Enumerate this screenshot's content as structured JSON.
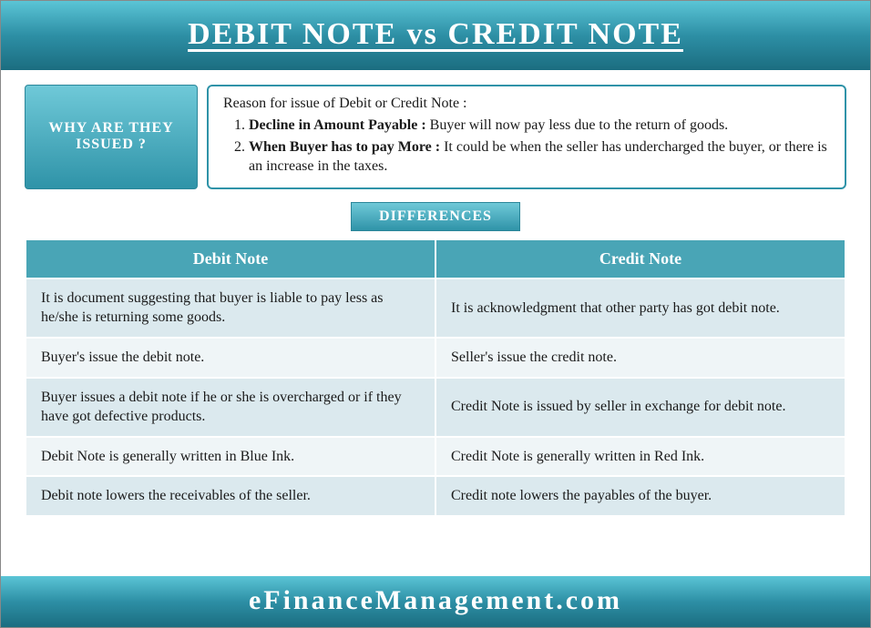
{
  "header": {
    "title": "DEBIT NOTE vs CREDIT NOTE"
  },
  "intro": {
    "why_label": "WHY ARE THEY ISSUED ?",
    "lead": "Reason for issue of Debit or Credit Note :",
    "reasons": [
      {
        "bold": "Decline in Amount Payable :",
        "text": " Buyer will now pay less due to the return of goods."
      },
      {
        "bold": "When Buyer has to pay More :",
        "text": " It could be when the seller has undercharged the buyer, or there is an increase in the taxes."
      }
    ]
  },
  "differences": {
    "label": "DIFFERENCES",
    "columns": [
      "Debit Note",
      "Credit Note"
    ],
    "rows": [
      [
        "It is document suggesting that buyer is liable to pay less as he/she is returning some goods.",
        "It is acknowledgment that other party has got debit note."
      ],
      [
        "Buyer's issue the debit note.",
        "Seller's issue the credit note."
      ],
      [
        "Buyer issues a debit note if he or she is overcharged or if they have got defective products.",
        "Credit Note is issued by seller in exchange for debit note."
      ],
      [
        "Debit Note is generally written in Blue Ink.",
        "Credit Note is generally written in Red Ink."
      ],
      [
        "Debit note lowers the receivables of the seller.",
        "Credit note lowers the payables of the buyer."
      ]
    ]
  },
  "footer": {
    "site": "eFinanceManagement.com"
  },
  "style": {
    "header_gradient": [
      "#5bc5d6",
      "#2d8fa5",
      "#1b6d80"
    ],
    "accent_gradient": [
      "#6fc9d8",
      "#2f93a8"
    ],
    "accent_border": "#2b8699",
    "table_header_bg": "#49a5b6",
    "row_odd_bg": "#dbe9ee",
    "row_even_bg": "#eff5f7",
    "text_color": "#1a1a1a",
    "header_fontsize": 34,
    "body_fontsize": 16,
    "footer_fontsize": 30
  }
}
